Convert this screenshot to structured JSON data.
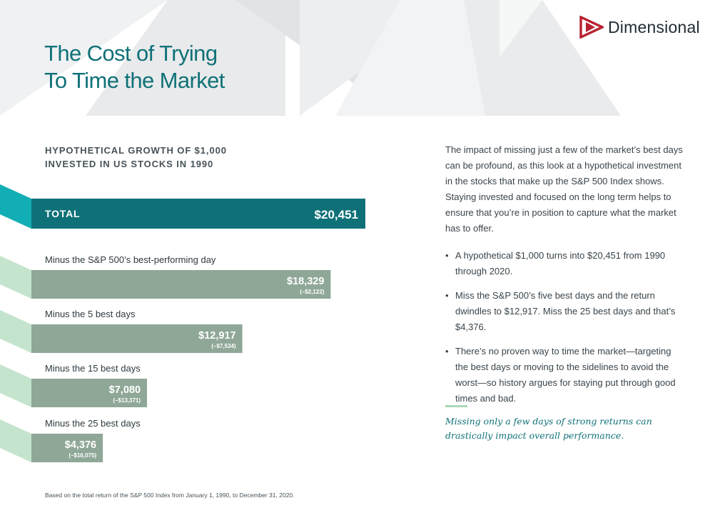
{
  "brand": {
    "name": "Dimensional",
    "icon": "dimensional-logo-icon",
    "color": "#b8202e"
  },
  "title_lines": [
    "The Cost of Trying",
    "To Time the Market"
  ],
  "subtitle_lines": [
    "HYPOTHETICAL GROWTH OF $1,000",
    "INVESTED IN US STOCKS IN 1990"
  ],
  "chart_data": {
    "type": "bar",
    "orientation": "horizontal",
    "title": "HYPOTHETICAL GROWTH OF $1,000 INVESTED IN US STOCKS IN 1990",
    "xlim": [
      0,
      20451
    ],
    "bars": [
      {
        "label": "TOTAL",
        "value": 20451,
        "value_label": "$20,451",
        "diff_label": "",
        "color": "#0f7178"
      },
      {
        "label": "Minus the S&P 500’s best-performing day",
        "value": 18329,
        "value_label": "$18,329",
        "diff_label": "(–$2,122)",
        "color": "#8fa797"
      },
      {
        "label": "Minus the 5 best days",
        "value": 12917,
        "value_label": "$12,917",
        "diff_label": "(–$7,534)",
        "color": "#8fa797"
      },
      {
        "label": "Minus the 15 best days",
        "value": 7080,
        "value_label": "$7,080",
        "diff_label": "(–$13,371)",
        "color": "#8fa797"
      },
      {
        "label": "Minus the 25 best days",
        "value": 4376,
        "value_label": "$4,376",
        "diff_label": "(–$16,075)",
        "color": "#8fa797"
      }
    ],
    "colors": {
      "total": "#0f7178",
      "total_tab": "#12aeb5",
      "minus": "#8fa797",
      "minus_tab": "#c5e4cd"
    }
  },
  "intro": "The impact of missing just a few of the market’s best days can be profound, as this look at a hypothetical investment in the stocks that make up the S&P 500 Index shows. Staying invested and focused on the long term helps to ensure that you’re in position to capture what the market has to offer.",
  "bullets": [
    "A hypothetical $1,000 turns into $20,451 from 1990 through 2020.",
    "Miss the S&P 500’s five best days and the return dwindles to $12,917. Miss the 25 best days and that’s $4,376.",
    "There’s no proven way to time the market—targeting the best days or moving to the sidelines to avoid the worst—so history argues for staying put through good times and bad."
  ],
  "callout": "Missing only a few days of strong returns can drastically impact overall performance.",
  "footnote": "Based on the total return of the S&P 500 Index from January 1, 1990, to December 31, 2020."
}
